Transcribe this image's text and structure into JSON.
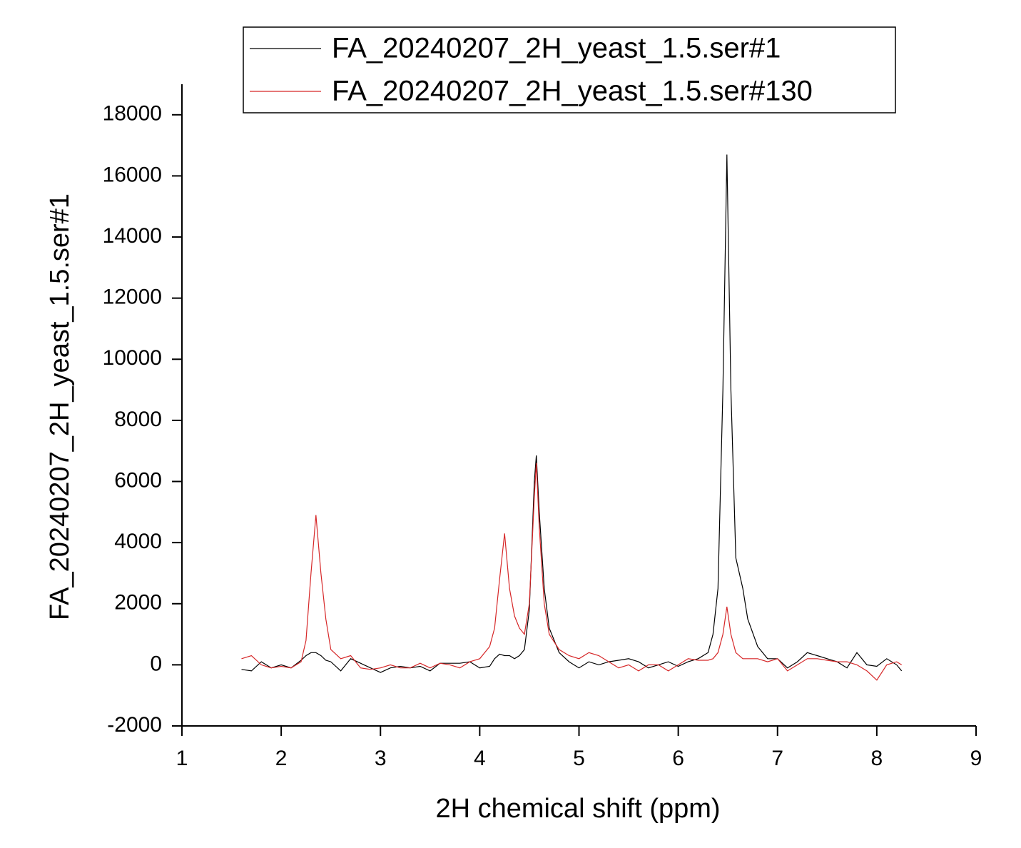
{
  "chart_data": {
    "type": "line",
    "xlabel": "2H chemical shift (ppm)",
    "ylabel": "FA_20240207_2H_yeast_1.5.ser#1",
    "xlim": [
      1,
      9
    ],
    "xticks": [
      1,
      2,
      3,
      4,
      5,
      6,
      7,
      8,
      9
    ],
    "ylim": [
      -2000,
      19000
    ],
    "yticks": [
      -2000,
      0,
      2000,
      4000,
      6000,
      8000,
      10000,
      12000,
      14000,
      16000,
      18000
    ],
    "legend": "top",
    "x": [
      1.6,
      1.7,
      1.8,
      1.9,
      2.0,
      2.1,
      2.2,
      2.25,
      2.3,
      2.35,
      2.4,
      2.45,
      2.5,
      2.6,
      2.7,
      2.8,
      2.9,
      3.0,
      3.1,
      3.2,
      3.3,
      3.4,
      3.5,
      3.6,
      3.7,
      3.8,
      3.9,
      4.0,
      4.1,
      4.15,
      4.2,
      4.25,
      4.3,
      4.35,
      4.4,
      4.45,
      4.5,
      4.55,
      4.57,
      4.6,
      4.65,
      4.7,
      4.8,
      4.9,
      5.0,
      5.1,
      5.2,
      5.3,
      5.4,
      5.5,
      5.6,
      5.7,
      5.8,
      5.9,
      6.0,
      6.1,
      6.2,
      6.3,
      6.35,
      6.4,
      6.45,
      6.49,
      6.53,
      6.58,
      6.65,
      6.7,
      6.8,
      6.9,
      7.0,
      7.1,
      7.2,
      7.3,
      7.4,
      7.5,
      7.6,
      7.7,
      7.8,
      7.9,
      8.0,
      8.1,
      8.2,
      8.25
    ],
    "series": [
      {
        "name": "FA_20240207_2H_yeast_1.5.ser#1",
        "color": "#000000",
        "values": [
          -150,
          -200,
          100,
          -100,
          0,
          -100,
          150,
          300,
          400,
          400,
          300,
          150,
          100,
          -200,
          200,
          50,
          -100,
          -250,
          -100,
          -50,
          -100,
          -50,
          -200,
          50,
          50,
          50,
          100,
          -100,
          -50,
          200,
          350,
          300,
          300,
          200,
          300,
          500,
          1800,
          6000,
          6850,
          5000,
          2500,
          1200,
          400,
          100,
          -100,
          100,
          0,
          100,
          150,
          200,
          100,
          -100,
          0,
          100,
          -50,
          100,
          200,
          400,
          1000,
          2500,
          9000,
          16700,
          9000,
          3500,
          2500,
          1500,
          600,
          200,
          200,
          -100,
          100,
          400,
          300,
          200,
          100,
          -100,
          400,
          0,
          -50,
          200,
          0,
          -200
        ]
      },
      {
        "name": "FA_20240207_2H_yeast_1.5.ser#130",
        "color": "#d62728",
        "values": [
          200,
          300,
          0,
          -100,
          -50,
          -100,
          100,
          800,
          3000,
          4900,
          3000,
          1500,
          500,
          200,
          300,
          -100,
          -150,
          -100,
          0,
          -100,
          -100,
          50,
          -100,
          50,
          0,
          -100,
          100,
          200,
          600,
          1200,
          2800,
          4300,
          2500,
          1600,
          1200,
          1000,
          2000,
          5500,
          6600,
          4500,
          2000,
          1000,
          500,
          300,
          200,
          400,
          300,
          100,
          -100,
          0,
          -200,
          0,
          0,
          -200,
          0,
          200,
          150,
          150,
          200,
          400,
          1000,
          1900,
          1000,
          400,
          200,
          200,
          200,
          100,
          200,
          -200,
          0,
          200,
          200,
          150,
          100,
          100,
          0,
          -200,
          -500,
          0,
          100,
          0
        ]
      }
    ]
  }
}
